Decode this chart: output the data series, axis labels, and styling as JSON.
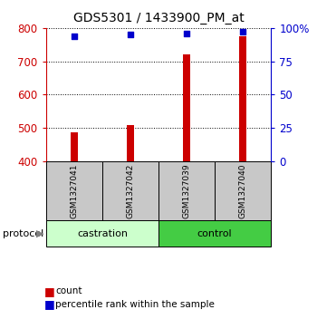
{
  "title": "GDS5301 / 1433900_PM_at",
  "samples": [
    "GSM1327041",
    "GSM1327042",
    "GSM1327039",
    "GSM1327040"
  ],
  "count_values": [
    487,
    510,
    720,
    775
  ],
  "percentile_values": [
    94,
    95,
    96,
    97
  ],
  "ylim_left": [
    400,
    800
  ],
  "ylim_right": [
    0,
    100
  ],
  "yticks_left": [
    400,
    500,
    600,
    700,
    800
  ],
  "yticks_right": [
    0,
    25,
    50,
    75,
    100
  ],
  "ytick_labels_right": [
    "0",
    "25",
    "50",
    "75",
    "100%"
  ],
  "bar_color": "#cc0000",
  "dot_color": "#0000cc",
  "left_axis_color": "#cc0000",
  "right_axis_color": "#0000cc",
  "groups": [
    {
      "label": "castration",
      "indices": [
        0,
        1
      ],
      "color": "#ccffcc"
    },
    {
      "label": "control",
      "indices": [
        2,
        3
      ],
      "color": "#44cc44"
    }
  ],
  "protocol_label": "protocol",
  "legend_count_label": "count",
  "legend_pct_label": "percentile rank within the sample",
  "sample_box_color": "#c8c8c8",
  "background_color": "#ffffff",
  "bar_width": 0.12
}
